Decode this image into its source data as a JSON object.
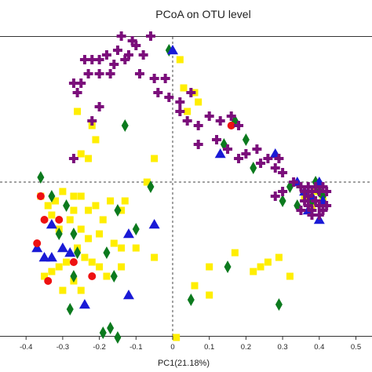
{
  "chart_data": {
    "type": "scatter",
    "title": "PCoA on OTU level",
    "xlabel": "PC1(21.18%)",
    "ylabel": "",
    "xlim": [
      -0.5,
      0.5
    ],
    "ylim": [
      -0.55,
      0.35
    ],
    "x_ticks": [
      "-0.4",
      "-0.3",
      "-0.2",
      "-0.1",
      "0",
      "0.1",
      "0.2",
      "0.3",
      "0.4",
      "0.5"
    ],
    "x_tick_values": [
      -0.4,
      -0.3,
      -0.2,
      -0.1,
      0,
      0.1,
      0.2,
      0.3,
      0.4,
      0.5
    ],
    "reference_lines": {
      "x": 0,
      "y": 0
    },
    "legend": "none",
    "series": [
      {
        "marker": "circle",
        "color": "#ee1111",
        "points": [
          [
            -0.36,
            -0.03
          ],
          [
            -0.35,
            -0.08
          ],
          [
            -0.31,
            -0.08
          ],
          [
            -0.37,
            -0.13
          ],
          [
            -0.34,
            -0.21
          ],
          [
            -0.22,
            -0.2
          ],
          [
            -0.27,
            -0.17
          ],
          [
            0.16,
            0.12
          ],
          [
            0.02,
            -0.34
          ]
        ]
      },
      {
        "marker": "triangle",
        "color": "#1a1ad6",
        "points": [
          [
            0.0,
            0.28
          ],
          [
            -0.37,
            -0.14
          ],
          [
            -0.35,
            -0.16
          ],
          [
            -0.33,
            -0.16
          ],
          [
            -0.3,
            -0.14
          ],
          [
            -0.28,
            -0.15
          ],
          [
            -0.33,
            -0.09
          ],
          [
            -0.24,
            -0.26
          ],
          [
            -0.12,
            -0.24
          ],
          [
            -0.12,
            -0.11
          ],
          [
            -0.05,
            -0.09
          ],
          [
            0.13,
            0.06
          ],
          [
            0.28,
            0.06
          ],
          [
            0.34,
            0.0
          ],
          [
            0.36,
            -0.02
          ],
          [
            0.38,
            -0.03
          ],
          [
            0.4,
            0.0
          ],
          [
            0.41,
            -0.04
          ],
          [
            0.37,
            -0.06
          ],
          [
            0.4,
            -0.08
          ]
        ]
      },
      {
        "marker": "diamond",
        "color": "#0c7a1e",
        "points": [
          [
            -0.01,
            0.28
          ],
          [
            -0.13,
            0.12
          ],
          [
            -0.36,
            0.01
          ],
          [
            -0.33,
            -0.03
          ],
          [
            -0.31,
            -0.11
          ],
          [
            -0.29,
            -0.05
          ],
          [
            -0.27,
            -0.11
          ],
          [
            -0.26,
            -0.15
          ],
          [
            -0.27,
            -0.2
          ],
          [
            -0.18,
            -0.15
          ],
          [
            -0.16,
            -0.2
          ],
          [
            -0.15,
            -0.06
          ],
          [
            -0.1,
            -0.1
          ],
          [
            -0.06,
            -0.01
          ],
          [
            -0.28,
            -0.27
          ],
          [
            -0.19,
            -0.32
          ],
          [
            -0.17,
            -0.31
          ],
          [
            -0.15,
            -0.33
          ],
          [
            0.14,
            0.08
          ],
          [
            0.17,
            0.13
          ],
          [
            0.2,
            0.09
          ],
          [
            0.22,
            0.03
          ],
          [
            0.34,
            -0.05
          ],
          [
            0.38,
            -0.04
          ],
          [
            0.4,
            -0.02
          ],
          [
            0.41,
            -0.03
          ],
          [
            0.39,
            0.0
          ],
          [
            0.3,
            -0.04
          ],
          [
            0.32,
            -0.01
          ],
          [
            0.15,
            -0.18
          ],
          [
            0.05,
            -0.25
          ],
          [
            0.29,
            -0.26
          ]
        ]
      },
      {
        "marker": "square",
        "color": "#ffee00",
        "points": [
          [
            0.02,
            0.26
          ],
          [
            0.03,
            0.2
          ],
          [
            0.06,
            0.19
          ],
          [
            0.07,
            0.17
          ],
          [
            0.04,
            0.15
          ],
          [
            -0.26,
            0.15
          ],
          [
            -0.22,
            0.12
          ],
          [
            -0.21,
            0.09
          ],
          [
            -0.23,
            0.05
          ],
          [
            -0.25,
            0.06
          ],
          [
            -0.05,
            0.05
          ],
          [
            -0.07,
            0.0
          ],
          [
            -0.36,
            -0.03
          ],
          [
            -0.34,
            -0.05
          ],
          [
            -0.32,
            -0.04
          ],
          [
            -0.3,
            -0.02
          ],
          [
            -0.27,
            -0.03
          ],
          [
            -0.25,
            -0.03
          ],
          [
            -0.23,
            -0.06
          ],
          [
            -0.21,
            -0.05
          ],
          [
            -0.19,
            -0.08
          ],
          [
            -0.17,
            -0.04
          ],
          [
            -0.13,
            -0.04
          ],
          [
            -0.14,
            -0.06
          ],
          [
            -0.33,
            -0.07
          ],
          [
            -0.31,
            -0.1
          ],
          [
            -0.28,
            -0.08
          ],
          [
            -0.27,
            -0.06
          ],
          [
            -0.25,
            -0.1
          ],
          [
            -0.23,
            -0.12
          ],
          [
            -0.2,
            -0.11
          ],
          [
            -0.16,
            -0.13
          ],
          [
            -0.14,
            -0.14
          ],
          [
            -0.31,
            -0.18
          ],
          [
            -0.29,
            -0.17
          ],
          [
            -0.26,
            -0.14
          ],
          [
            -0.24,
            -0.16
          ],
          [
            -0.22,
            -0.17
          ],
          [
            -0.2,
            -0.18
          ],
          [
            -0.18,
            -0.2
          ],
          [
            -0.14,
            -0.18
          ],
          [
            -0.1,
            -0.14
          ],
          [
            -0.05,
            -0.16
          ],
          [
            -0.3,
            -0.23
          ],
          [
            -0.27,
            -0.21
          ],
          [
            -0.25,
            -0.23
          ],
          [
            -0.35,
            -0.2
          ],
          [
            -0.33,
            -0.19
          ],
          [
            0.0,
            -0.34
          ],
          [
            0.01,
            -0.33
          ],
          [
            0.1,
            -0.18
          ],
          [
            0.17,
            -0.15
          ],
          [
            0.22,
            -0.19
          ],
          [
            0.24,
            -0.18
          ],
          [
            0.26,
            -0.17
          ],
          [
            0.29,
            -0.16
          ],
          [
            0.32,
            -0.2
          ],
          [
            0.36,
            -0.03
          ],
          [
            0.41,
            -0.04
          ],
          [
            0.38,
            -0.05
          ],
          [
            0.39,
            -0.02
          ],
          [
            0.06,
            -0.22
          ],
          [
            0.1,
            -0.24
          ]
        ]
      },
      {
        "marker": "plus",
        "color": "#7b0f7b",
        "points": [
          [
            -0.06,
            0.31
          ],
          [
            -0.1,
            0.29
          ],
          [
            -0.12,
            0.27
          ],
          [
            -0.15,
            0.28
          ],
          [
            -0.13,
            0.26
          ],
          [
            -0.16,
            0.25
          ],
          [
            -0.18,
            0.27
          ],
          [
            -0.2,
            0.26
          ],
          [
            -0.22,
            0.26
          ],
          [
            -0.24,
            0.26
          ],
          [
            -0.23,
            0.23
          ],
          [
            -0.25,
            0.21
          ],
          [
            -0.26,
            0.19
          ],
          [
            -0.27,
            0.21
          ],
          [
            -0.2,
            0.23
          ],
          [
            -0.17,
            0.23
          ],
          [
            -0.09,
            0.23
          ],
          [
            -0.05,
            0.22
          ],
          [
            -0.02,
            0.22
          ],
          [
            -0.04,
            0.19
          ],
          [
            -0.01,
            0.18
          ],
          [
            0.02,
            0.17
          ],
          [
            0.05,
            0.19
          ],
          [
            0.02,
            0.15
          ],
          [
            0.04,
            0.13
          ],
          [
            0.07,
            0.12
          ],
          [
            0.1,
            0.14
          ],
          [
            0.13,
            0.13
          ],
          [
            0.16,
            0.14
          ],
          [
            0.18,
            0.12
          ],
          [
            0.12,
            0.09
          ],
          [
            0.15,
            0.07
          ],
          [
            0.18,
            0.05
          ],
          [
            0.2,
            0.06
          ],
          [
            0.23,
            0.07
          ],
          [
            0.24,
            0.04
          ],
          [
            0.26,
            0.05
          ],
          [
            0.28,
            0.03
          ],
          [
            0.3,
            0.02
          ],
          [
            0.29,
            0.05
          ],
          [
            0.07,
            0.08
          ],
          [
            -0.2,
            0.16
          ],
          [
            -0.22,
            0.13
          ],
          [
            -0.11,
            0.3
          ],
          [
            -0.14,
            0.31
          ],
          [
            -0.08,
            0.27
          ],
          [
            0.33,
            0.0
          ],
          [
            0.35,
            -0.01
          ],
          [
            0.36,
            -0.02
          ],
          [
            0.37,
            -0.01
          ],
          [
            0.38,
            -0.02
          ],
          [
            0.39,
            -0.01
          ],
          [
            0.4,
            -0.02
          ],
          [
            0.41,
            -0.01
          ],
          [
            0.42,
            -0.02
          ],
          [
            0.36,
            -0.04
          ],
          [
            0.37,
            -0.05
          ],
          [
            0.38,
            -0.06
          ],
          [
            0.39,
            -0.04
          ],
          [
            0.4,
            -0.05
          ],
          [
            0.41,
            -0.06
          ],
          [
            0.42,
            -0.05
          ],
          [
            0.37,
            -0.03
          ],
          [
            0.38,
            -0.07
          ],
          [
            0.4,
            -0.07
          ],
          [
            0.35,
            -0.06
          ],
          [
            0.28,
            -0.03
          ],
          [
            0.3,
            -0.02
          ],
          [
            -0.27,
            0.05
          ]
        ]
      }
    ]
  }
}
